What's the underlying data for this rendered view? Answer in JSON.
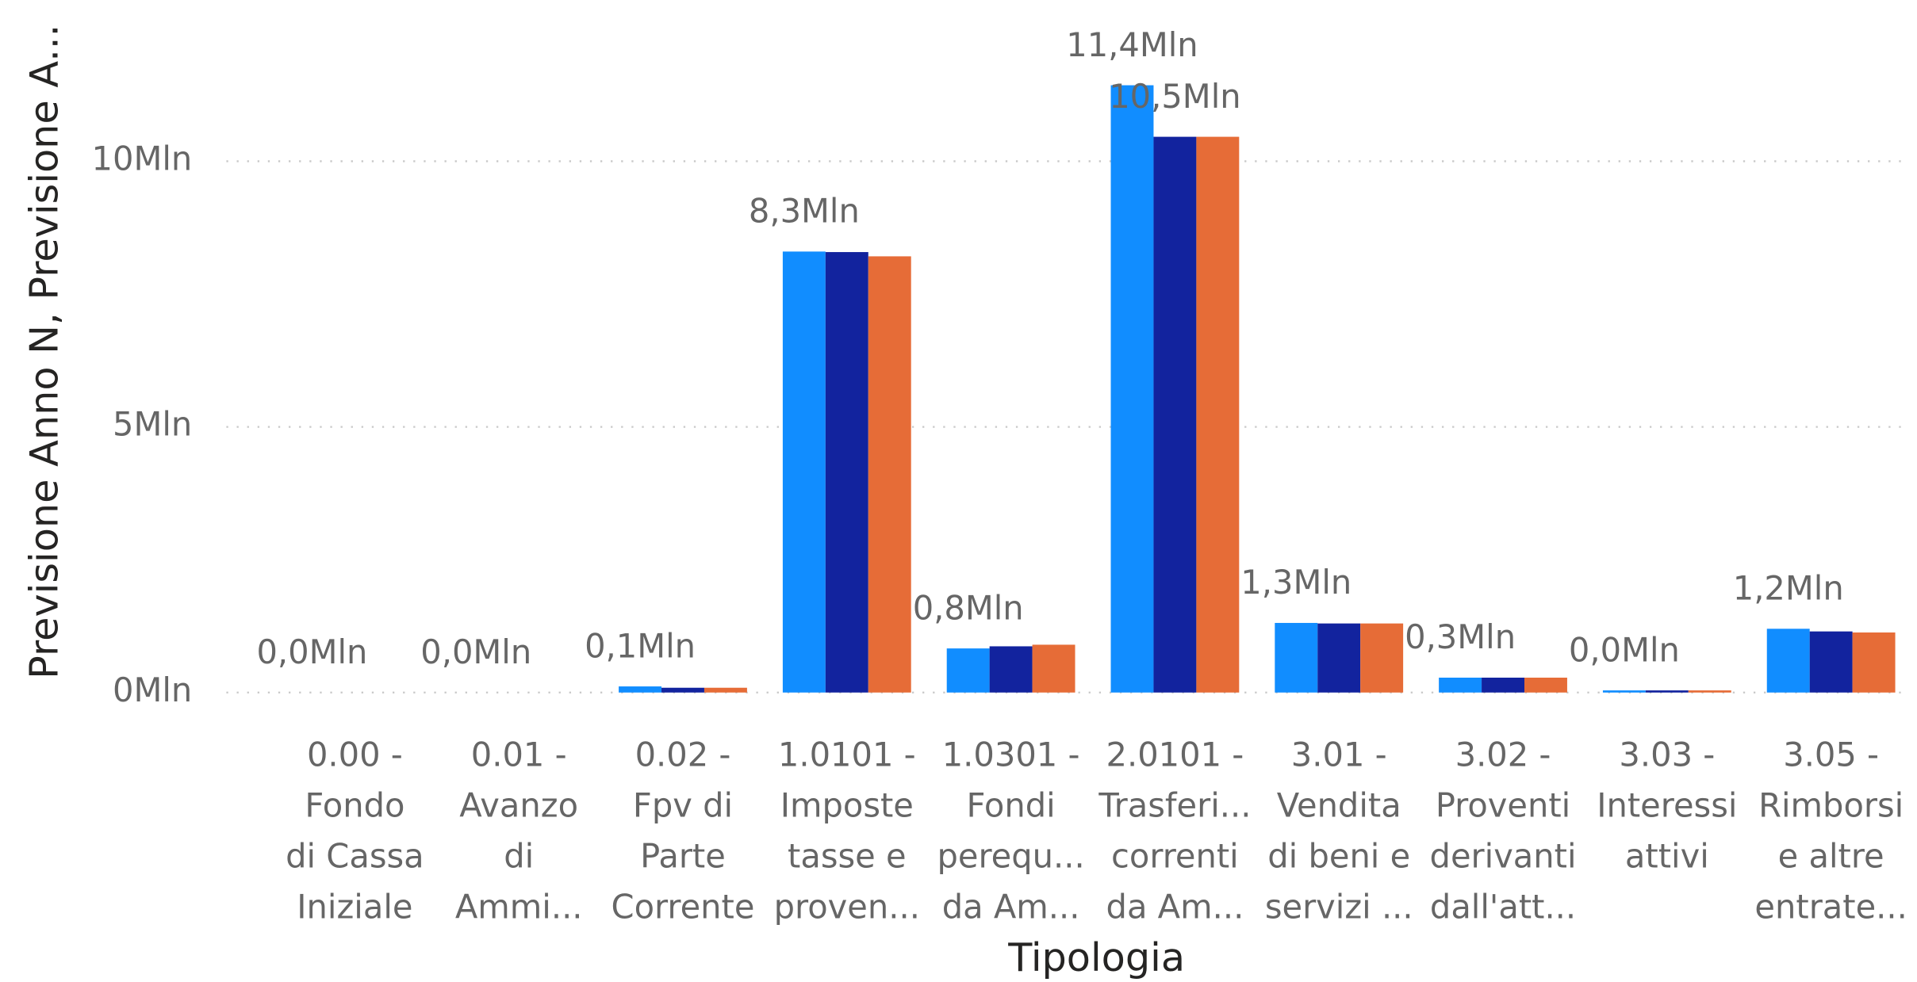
{
  "chart_data": {
    "type": "bar",
    "x_label": "Tipologia",
    "y_label": "Previsione Anno N, Previsione A...",
    "categories": [
      [
        "0.00 -",
        "Fondo",
        "di Cassa",
        "Iniziale"
      ],
      [
        "0.01 -",
        "Avanzo",
        "di",
        "Ammi..."
      ],
      [
        "0.02 -",
        "Fpv di",
        "Parte",
        "Corrente"
      ],
      [
        "1.0101 -",
        "Imposte",
        "tasse e",
        "proven..."
      ],
      [
        "1.0301 -",
        "Fondi",
        "perequ...",
        "da Am..."
      ],
      [
        "2.0101 -",
        "Trasferi...",
        "correnti",
        "da Am..."
      ],
      [
        "3.01 -",
        "Vendita",
        "di beni e",
        "servizi ..."
      ],
      [
        "3.02 -",
        "Proventi",
        "derivanti",
        "dall'att..."
      ],
      [
        "3.03 -",
        "Interessi",
        "attivi"
      ],
      [
        "3.05 -",
        "Rimborsi",
        "e altre",
        "entrate..."
      ]
    ],
    "series": [
      {
        "color": "#118dff",
        "values": [
          0,
          0,
          115000,
          8300000,
          830000,
          11430000,
          1310000,
          280000,
          40000,
          1200000
        ],
        "value_labels": [
          "0,0Mln",
          "0,0Mln",
          "0,1Mln",
          "8,3Mln",
          "0,8Mln",
          "11,4Mln",
          "1,3Mln",
          "0,3Mln",
          "0,0Mln",
          "1,2Mln"
        ]
      },
      {
        "color": "#12239e",
        "values": [
          0,
          0,
          90000,
          8290000,
          870000,
          10460000,
          1300000,
          280000,
          40000,
          1150000
        ],
        "value_labels": [
          null,
          null,
          null,
          null,
          null,
          "10,5Mln",
          null,
          null,
          null,
          null
        ]
      },
      {
        "color": "#e66c37",
        "values": [
          0,
          0,
          90000,
          8210000,
          900000,
          10460000,
          1300000,
          280000,
          40000,
          1130000
        ]
      }
    ],
    "ylim": [
      0,
      13000000
    ],
    "yticks": [
      {
        "value": 0,
        "label": "0Mln"
      },
      {
        "value": 5000000,
        "label": "5Mln"
      },
      {
        "value": 10000000,
        "label": "10Mln"
      }
    ],
    "grid": true
  }
}
